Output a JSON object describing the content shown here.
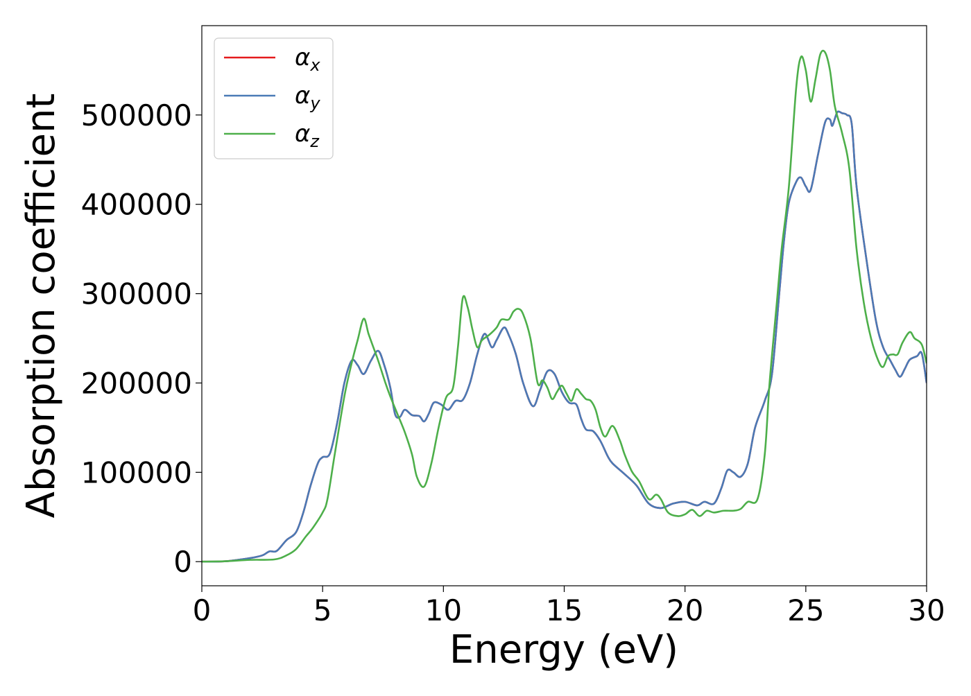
{
  "chart_data": {
    "type": "line",
    "title": "",
    "xlabel": "Energy (eV)",
    "ylabel": "Absorption coefficient",
    "xlim": [
      0,
      30
    ],
    "ylim": [
      -27000,
      600000
    ],
    "xticks": [
      0,
      5,
      10,
      15,
      20,
      25,
      30
    ],
    "yticks": [
      0,
      100000,
      200000,
      300000,
      400000,
      500000
    ],
    "grid": false,
    "legend_position": "top-left",
    "series": [
      {
        "name": "α_x",
        "label_main": "α",
        "label_sub": "x",
        "color": "#e41a1c",
        "points": [
          [
            0,
            0
          ],
          [
            1,
            500
          ],
          [
            2,
            4000
          ],
          [
            2.5,
            7000
          ],
          [
            2.8,
            11500
          ],
          [
            3.1,
            12000
          ],
          [
            3.5,
            24000
          ],
          [
            3.9,
            33000
          ],
          [
            4.2,
            55000
          ],
          [
            4.5,
            85000
          ],
          [
            4.8,
            110000
          ],
          [
            5,
            117000
          ],
          [
            5.3,
            121000
          ],
          [
            5.6,
            155000
          ],
          [
            5.9,
            200000
          ],
          [
            6.2,
            225000
          ],
          [
            6.45,
            220000
          ],
          [
            6.7,
            210000
          ],
          [
            7.0,
            225000
          ],
          [
            7.3,
            236000
          ],
          [
            7.55,
            220000
          ],
          [
            7.8,
            195000
          ],
          [
            8.0,
            165000
          ],
          [
            8.2,
            162000
          ],
          [
            8.4,
            170000
          ],
          [
            8.7,
            164000
          ],
          [
            9.0,
            163000
          ],
          [
            9.2,
            157000
          ],
          [
            9.4,
            166000
          ],
          [
            9.6,
            178000
          ],
          [
            9.9,
            176000
          ],
          [
            10.2,
            170000
          ],
          [
            10.5,
            180000
          ],
          [
            10.8,
            181000
          ],
          [
            11.1,
            200000
          ],
          [
            11.4,
            232000
          ],
          [
            11.7,
            255000
          ],
          [
            12.0,
            240000
          ],
          [
            12.2,
            248000
          ],
          [
            12.5,
            262000
          ],
          [
            12.7,
            254000
          ],
          [
            13.0,
            232000
          ],
          [
            13.3,
            200000
          ],
          [
            13.7,
            174000
          ],
          [
            14.0,
            192000
          ],
          [
            14.3,
            213000
          ],
          [
            14.6,
            210000
          ],
          [
            14.9,
            190000
          ],
          [
            15.2,
            178000
          ],
          [
            15.5,
            176000
          ],
          [
            15.7,
            160000
          ],
          [
            15.9,
            148000
          ],
          [
            16.2,
            146000
          ],
          [
            16.5,
            135000
          ],
          [
            16.8,
            118000
          ],
          [
            17.0,
            110000
          ],
          [
            17.5,
            98000
          ],
          [
            18.0,
            85000
          ],
          [
            18.5,
            65000
          ],
          [
            19.0,
            60000
          ],
          [
            19.5,
            65000
          ],
          [
            20.0,
            67000
          ],
          [
            20.5,
            63000
          ],
          [
            20.8,
            67000
          ],
          [
            21.2,
            65000
          ],
          [
            21.5,
            82000
          ],
          [
            21.75,
            102000
          ],
          [
            22.0,
            100000
          ],
          [
            22.3,
            95000
          ],
          [
            22.6,
            110000
          ],
          [
            22.9,
            150000
          ],
          [
            23.3,
            180000
          ],
          [
            23.6,
            210000
          ],
          [
            23.9,
            300000
          ],
          [
            24.1,
            360000
          ],
          [
            24.3,
            402000
          ],
          [
            24.6,
            425000
          ],
          [
            24.8,
            430000
          ],
          [
            25.0,
            420000
          ],
          [
            25.2,
            416000
          ],
          [
            25.5,
            455000
          ],
          [
            25.8,
            492000
          ],
          [
            26.0,
            495000
          ],
          [
            26.1,
            488000
          ],
          [
            26.3,
            503000
          ],
          [
            26.5,
            502000
          ],
          [
            26.7,
            500000
          ],
          [
            26.9,
            490000
          ],
          [
            27.1,
            420000
          ],
          [
            27.5,
            340000
          ],
          [
            27.9,
            270000
          ],
          [
            28.2,
            240000
          ],
          [
            28.5,
            225000
          ],
          [
            28.7,
            215000
          ],
          [
            28.9,
            207000
          ],
          [
            29.1,
            216000
          ],
          [
            29.3,
            226000
          ],
          [
            29.6,
            230000
          ],
          [
            29.8,
            233000
          ],
          [
            30.0,
            200000
          ]
        ]
      },
      {
        "name": "α_y",
        "label_main": "α",
        "label_sub": "y",
        "color": "#4a7ab6",
        "points": [
          [
            0,
            0
          ],
          [
            1,
            500
          ],
          [
            2,
            4000
          ],
          [
            2.5,
            7000
          ],
          [
            2.8,
            11500
          ],
          [
            3.1,
            12000
          ],
          [
            3.5,
            24000
          ],
          [
            3.9,
            33000
          ],
          [
            4.2,
            55000
          ],
          [
            4.5,
            85000
          ],
          [
            4.8,
            110000
          ],
          [
            5,
            117000
          ],
          [
            5.3,
            121000
          ],
          [
            5.6,
            155000
          ],
          [
            5.9,
            200000
          ],
          [
            6.2,
            225000
          ],
          [
            6.45,
            220000
          ],
          [
            6.7,
            210000
          ],
          [
            7.0,
            225000
          ],
          [
            7.3,
            236000
          ],
          [
            7.55,
            220000
          ],
          [
            7.8,
            195000
          ],
          [
            8.0,
            165000
          ],
          [
            8.2,
            162000
          ],
          [
            8.4,
            170000
          ],
          [
            8.7,
            164000
          ],
          [
            9.0,
            163000
          ],
          [
            9.2,
            157000
          ],
          [
            9.4,
            166000
          ],
          [
            9.6,
            178000
          ],
          [
            9.9,
            176000
          ],
          [
            10.2,
            170000
          ],
          [
            10.5,
            180000
          ],
          [
            10.8,
            181000
          ],
          [
            11.1,
            200000
          ],
          [
            11.4,
            232000
          ],
          [
            11.7,
            255000
          ],
          [
            12.0,
            240000
          ],
          [
            12.2,
            248000
          ],
          [
            12.5,
            262000
          ],
          [
            12.7,
            254000
          ],
          [
            13.0,
            232000
          ],
          [
            13.3,
            200000
          ],
          [
            13.7,
            174000
          ],
          [
            14.0,
            192000
          ],
          [
            14.3,
            213000
          ],
          [
            14.6,
            210000
          ],
          [
            14.9,
            190000
          ],
          [
            15.2,
            178000
          ],
          [
            15.5,
            176000
          ],
          [
            15.7,
            160000
          ],
          [
            15.9,
            148000
          ],
          [
            16.2,
            146000
          ],
          [
            16.5,
            135000
          ],
          [
            16.8,
            118000
          ],
          [
            17.0,
            110000
          ],
          [
            17.5,
            98000
          ],
          [
            18.0,
            85000
          ],
          [
            18.5,
            65000
          ],
          [
            19.0,
            60000
          ],
          [
            19.5,
            65000
          ],
          [
            20.0,
            67000
          ],
          [
            20.5,
            63000
          ],
          [
            20.8,
            67000
          ],
          [
            21.2,
            65000
          ],
          [
            21.5,
            82000
          ],
          [
            21.75,
            102000
          ],
          [
            22.0,
            100000
          ],
          [
            22.3,
            95000
          ],
          [
            22.6,
            110000
          ],
          [
            22.9,
            150000
          ],
          [
            23.3,
            180000
          ],
          [
            23.6,
            210000
          ],
          [
            23.9,
            300000
          ],
          [
            24.1,
            360000
          ],
          [
            24.3,
            402000
          ],
          [
            24.6,
            425000
          ],
          [
            24.8,
            430000
          ],
          [
            25.0,
            420000
          ],
          [
            25.2,
            416000
          ],
          [
            25.5,
            455000
          ],
          [
            25.8,
            492000
          ],
          [
            26.0,
            495000
          ],
          [
            26.1,
            488000
          ],
          [
            26.3,
            503000
          ],
          [
            26.5,
            502000
          ],
          [
            26.7,
            500000
          ],
          [
            26.9,
            490000
          ],
          [
            27.1,
            420000
          ],
          [
            27.5,
            340000
          ],
          [
            27.9,
            270000
          ],
          [
            28.2,
            240000
          ],
          [
            28.5,
            225000
          ],
          [
            28.7,
            215000
          ],
          [
            28.9,
            207000
          ],
          [
            29.1,
            216000
          ],
          [
            29.3,
            226000
          ],
          [
            29.6,
            230000
          ],
          [
            29.8,
            233000
          ],
          [
            30.0,
            200000
          ]
        ]
      },
      {
        "name": "α_z",
        "label_main": "α",
        "label_sub": "z",
        "color": "#4daf4a",
        "points": [
          [
            0,
            0
          ],
          [
            1,
            500
          ],
          [
            2,
            2000
          ],
          [
            3,
            2500
          ],
          [
            3.5,
            7000
          ],
          [
            3.9,
            14000
          ],
          [
            4.3,
            28000
          ],
          [
            4.6,
            38000
          ],
          [
            5.0,
            55000
          ],
          [
            5.2,
            70000
          ],
          [
            5.5,
            120000
          ],
          [
            5.9,
            185000
          ],
          [
            6.2,
            222000
          ],
          [
            6.45,
            248000
          ],
          [
            6.7,
            272000
          ],
          [
            6.9,
            255000
          ],
          [
            7.1,
            240000
          ],
          [
            7.3,
            225000
          ],
          [
            7.6,
            200000
          ],
          [
            7.8,
            185000
          ],
          [
            8.1,
            165000
          ],
          [
            8.4,
            145000
          ],
          [
            8.7,
            120000
          ],
          [
            8.9,
            95000
          ],
          [
            9.2,
            84000
          ],
          [
            9.5,
            110000
          ],
          [
            9.8,
            150000
          ],
          [
            10.1,
            183000
          ],
          [
            10.4,
            195000
          ],
          [
            10.6,
            240000
          ],
          [
            10.8,
            295000
          ],
          [
            11.0,
            285000
          ],
          [
            11.2,
            260000
          ],
          [
            11.4,
            240000
          ],
          [
            11.6,
            248000
          ],
          [
            11.9,
            254000
          ],
          [
            12.2,
            262000
          ],
          [
            12.4,
            271000
          ],
          [
            12.7,
            271000
          ],
          [
            12.9,
            280000
          ],
          [
            13.1,
            283000
          ],
          [
            13.3,
            277000
          ],
          [
            13.6,
            250000
          ],
          [
            13.9,
            200000
          ],
          [
            14.1,
            203000
          ],
          [
            14.3,
            195000
          ],
          [
            14.5,
            182000
          ],
          [
            14.7,
            190000
          ],
          [
            14.9,
            197000
          ],
          [
            15.1,
            188000
          ],
          [
            15.3,
            180000
          ],
          [
            15.5,
            193000
          ],
          [
            15.7,
            188000
          ],
          [
            15.9,
            182000
          ],
          [
            16.1,
            180000
          ],
          [
            16.3,
            170000
          ],
          [
            16.5,
            150000
          ],
          [
            16.7,
            140000
          ],
          [
            17.0,
            152000
          ],
          [
            17.3,
            136000
          ],
          [
            17.5,
            120000
          ],
          [
            17.8,
            101000
          ],
          [
            18.1,
            90000
          ],
          [
            18.5,
            70000
          ],
          [
            18.8,
            75000
          ],
          [
            19.0,
            70000
          ],
          [
            19.3,
            55000
          ],
          [
            19.7,
            51000
          ],
          [
            20.0,
            53000
          ],
          [
            20.3,
            58000
          ],
          [
            20.6,
            51000
          ],
          [
            20.9,
            57000
          ],
          [
            21.2,
            55000
          ],
          [
            21.6,
            57000
          ],
          [
            22.0,
            57000
          ],
          [
            22.3,
            59000
          ],
          [
            22.6,
            67000
          ],
          [
            23.0,
            70000
          ],
          [
            23.3,
            120000
          ],
          [
            23.5,
            200000
          ],
          [
            23.8,
            290000
          ],
          [
            24.0,
            350000
          ],
          [
            24.3,
            420000
          ],
          [
            24.6,
            530000
          ],
          [
            24.8,
            565000
          ],
          [
            25.0,
            550000
          ],
          [
            25.2,
            515000
          ],
          [
            25.4,
            540000
          ],
          [
            25.6,
            568000
          ],
          [
            25.8,
            570000
          ],
          [
            26.0,
            550000
          ],
          [
            26.2,
            510000
          ],
          [
            26.5,
            480000
          ],
          [
            26.8,
            440000
          ],
          [
            27.1,
            350000
          ],
          [
            27.4,
            290000
          ],
          [
            27.7,
            250000
          ],
          [
            28.0,
            225000
          ],
          [
            28.2,
            218000
          ],
          [
            28.4,
            230000
          ],
          [
            28.6,
            232000
          ],
          [
            28.8,
            232000
          ],
          [
            29.0,
            245000
          ],
          [
            29.3,
            257000
          ],
          [
            29.5,
            250000
          ],
          [
            29.8,
            243000
          ],
          [
            30.0,
            222000
          ]
        ]
      }
    ]
  }
}
